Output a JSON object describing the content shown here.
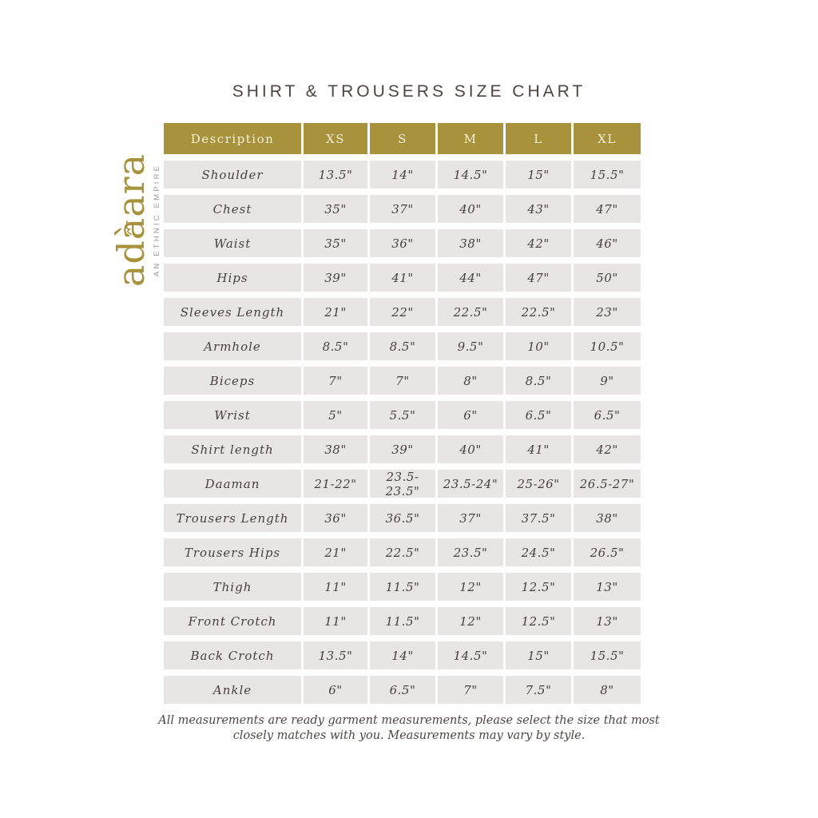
{
  "title": "SHIRT & TROUSERS SIZE CHART",
  "logo": {
    "brand": "adàara",
    "tagline": "AN ETHNIC EMPIRE"
  },
  "colors": {
    "gold": "#a8923b",
    "header_text": "#f6f0da",
    "cell_bg": "#e7e6e4",
    "cell_text": "#4a413e",
    "title_text": "#4e4440",
    "tagline_gray": "#9b9b99"
  },
  "table": {
    "headers": [
      "Description",
      "XS",
      "S",
      "M",
      "L",
      "XL"
    ],
    "rows": [
      {
        "label": "Shoulder",
        "values": [
          "13.5\"",
          "14\"",
          "14.5\"",
          "15\"",
          "15.5\""
        ]
      },
      {
        "label": "Chest",
        "values": [
          "35\"",
          "37\"",
          "40\"",
          "43\"",
          "47\""
        ]
      },
      {
        "label": "Waist",
        "values": [
          "35\"",
          "36\"",
          "38\"",
          "42\"",
          "46\""
        ]
      },
      {
        "label": "Hips",
        "values": [
          "39\"",
          "41\"",
          "44\"",
          "47\"",
          "50\""
        ]
      },
      {
        "label": "Sleeves Length",
        "values": [
          "21\"",
          "22\"",
          "22.5\"",
          "22.5\"",
          "23\""
        ]
      },
      {
        "label": "Armhole",
        "values": [
          "8.5\"",
          "8.5\"",
          "9.5\"",
          "10\"",
          "10.5\""
        ]
      },
      {
        "label": "Biceps",
        "values": [
          "7\"",
          "7\"",
          "8\"",
          "8.5\"",
          "9\""
        ]
      },
      {
        "label": "Wrist",
        "values": [
          "5\"",
          "5.5\"",
          "6\"",
          "6.5\"",
          "6.5\""
        ]
      },
      {
        "label": "Shirt length",
        "values": [
          "38\"",
          "39\"",
          "40\"",
          "41\"",
          "42\""
        ]
      },
      {
        "label": "Daaman",
        "values": [
          "21-22\"",
          "23.5-23.5\"",
          "23.5-24\"",
          "25-26\"",
          "26.5-27\""
        ]
      },
      {
        "label": "Trousers Length",
        "values": [
          "36\"",
          "36.5\"",
          "37\"",
          "37.5\"",
          "38\""
        ]
      },
      {
        "label": "Trousers Hips",
        "values": [
          "21\"",
          "22.5\"",
          "23.5\"",
          "24.5\"",
          "26.5\""
        ]
      },
      {
        "label": "Thigh",
        "values": [
          "11\"",
          "11.5\"",
          "12\"",
          "12.5\"",
          "13\""
        ]
      },
      {
        "label": "Front Crotch",
        "values": [
          "11\"",
          "11.5\"",
          "12\"",
          "12.5\"",
          "13\""
        ]
      },
      {
        "label": "Back Crotch",
        "values": [
          "13.5\"",
          "14\"",
          "14.5\"",
          "15\"",
          "15.5\""
        ]
      },
      {
        "label": "Ankle",
        "values": [
          "6\"",
          "6.5\"",
          "7\"",
          "7.5\"",
          "8\""
        ]
      }
    ]
  },
  "footer": {
    "line1": "All measurements are ready garment measurements, please select the size that most",
    "line2": "closely matches with you. Measurements may vary by style."
  }
}
